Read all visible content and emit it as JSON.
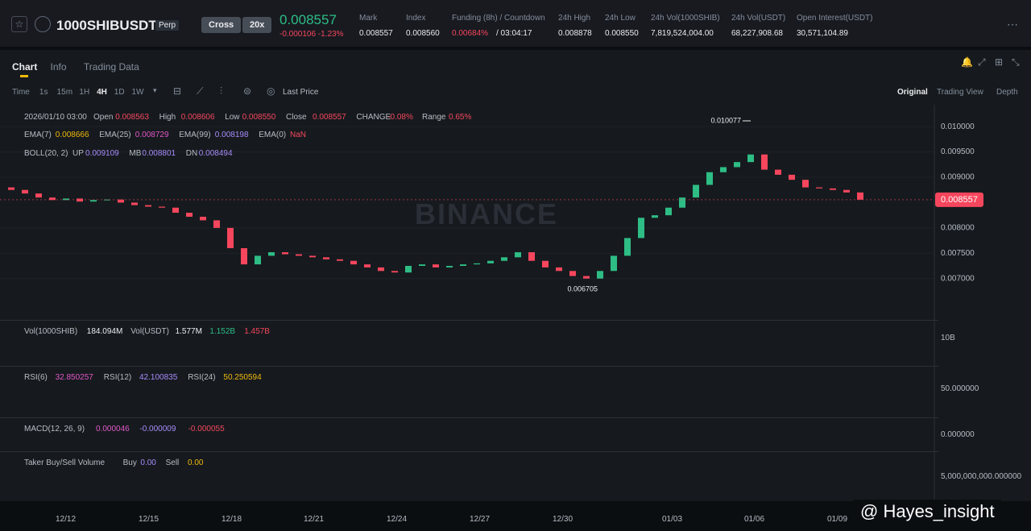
{
  "header": {
    "symbol": "1000SHIBUSDT",
    "contract": "Perp",
    "margin": "Cross",
    "leverage": "20x",
    "price": "0.008557",
    "change": "-0.000106",
    "change_pct": "-1.23%",
    "stats": [
      {
        "label": "Mark",
        "value": "0.008557"
      },
      {
        "label": "Index",
        "value": "0.008560"
      },
      {
        "label": "Funding (8h) / Countdown",
        "value": "0.00684%",
        "value2": "/ 03:04:17"
      },
      {
        "label": "24h High",
        "value": "0.008878"
      },
      {
        "label": "24h Low",
        "value": "0.008550"
      },
      {
        "label": "24h Vol(1000SHIB)",
        "value": "7,819,524,004.00"
      },
      {
        "label": "24h Vol(USDT)",
        "value": "68,227,908.68"
      },
      {
        "label": "Open Interest(USDT)",
        "value": "30,571,104.89"
      }
    ]
  },
  "tabs": [
    "Chart",
    "Info",
    "Trading Data"
  ],
  "intervals": [
    "Time",
    "1s",
    "15m",
    "1H",
    "4H",
    "1D",
    "1W"
  ],
  "price_type": "Last Price",
  "views": [
    "Original",
    "Trading View",
    "Depth"
  ],
  "legend": {
    "time": "2026/01/10 03:00",
    "ohlc": [
      {
        "label": "Open",
        "value": "0.008563"
      },
      {
        "label": "High",
        "value": "0.008606"
      },
      {
        "label": "Low",
        "value": "0.008550"
      },
      {
        "label": "Close",
        "value": "0.008557"
      },
      {
        "label": "CHANGE",
        "value": "-0.08%"
      },
      {
        "label": "Range",
        "value": "0.65%"
      }
    ],
    "ema": [
      {
        "label": "EMA(7)",
        "value": "0.008666",
        "color": "#f0b90b"
      },
      {
        "label": "EMA(25)",
        "value": "0.008729",
        "color": "#e056c7"
      },
      {
        "label": "EMA(99)",
        "value": "0.008198",
        "color": "#a78bfa"
      },
      {
        "label": "EMA(0)",
        "value": "NaN",
        "color": "#f6465d"
      }
    ],
    "boll": {
      "label": "BOLL(20, 2)",
      "items": [
        {
          "label": "UP",
          "value": "0.009109"
        },
        {
          "label": "MB",
          "value": "0.008801"
        },
        {
          "label": "DN",
          "value": "0.008494"
        }
      ]
    }
  },
  "watermark": "BINANCE",
  "chart": {
    "type": "candlestick",
    "open": 0.0088,
    "values": [
      0.00875,
      0.00868,
      0.0086,
      0.00855,
      0.00858,
      0.00852,
      0.00855,
      0.00856,
      0.0085,
      0.00845,
      0.00842,
      0.0084,
      0.0083,
      0.00822,
      0.00815,
      0.008,
      0.0076,
      0.00728,
      0.00745,
      0.00752,
      0.00748,
      0.00745,
      0.00742,
      0.00738,
      0.00735,
      0.00728,
      0.00722,
      0.00715,
      0.00712,
      0.00725,
      0.00728,
      0.00722,
      0.00725,
      0.00728,
      0.0073,
      0.00735,
      0.00742,
      0.00752,
      0.00735,
      0.00722,
      0.00715,
      0.00705,
      0.007,
      0.00715,
      0.00745,
      0.0078,
      0.0082,
      0.00825,
      0.0084,
      0.0086,
      0.00885,
      0.0091,
      0.0092,
      0.0093,
      0.00945,
      0.00915,
      0.00905,
      0.00895,
      0.0088,
      0.00878,
      0.00875,
      0.0087,
      0.008557
    ],
    "ylim": [
      0.0062,
      0.0104
    ],
    "yticks": [
      {
        "value": 0.01,
        "label": "0.010000"
      },
      {
        "value": 0.0095,
        "label": "0.009500"
      },
      {
        "value": 0.009,
        "label": "0.009000"
      },
      {
        "value": 0.008,
        "label": "0.008000"
      },
      {
        "value": 0.0075,
        "label": "0.007500"
      },
      {
        "value": 0.007,
        "label": "0.007000"
      }
    ],
    "last_price": {
      "value": 0.008557,
      "label": "0.008557"
    },
    "high_label": "0.010077",
    "low_label": "0.006705"
  },
  "dates": [
    "12/12",
    "12/15",
    "12/18",
    "12/21",
    "12/24",
    "12/27",
    "12/30",
    "01/03",
    "01/06",
    "01/09"
  ],
  "panels": [
    {
      "items": [
        {
          "label": "Vol(1000SHIB)",
          "value": "184.094M"
        },
        {
          "label": "Vol(USDT)",
          "value": "1.577M"
        },
        {
          "value": "1.152B",
          "color": "#2ebd85"
        },
        {
          "value": "1.457B",
          "color": "#f6465d"
        }
      ],
      "axis": "10B"
    },
    {
      "items": [
        {
          "label": "RSI(6)",
          "value": "32.850257",
          "color": "#e056c7"
        },
        {
          "label": "RSI(12)",
          "value": "42.100835",
          "color": "#a78bfa"
        },
        {
          "label": "RSI(24)",
          "value": "50.250594",
          "color": "#f0b90b"
        }
      ],
      "axis": "50.000000"
    },
    {
      "items": [
        {
          "label": "MACD(12, 26, 9)",
          "value": "0.000046",
          "color": "#e056c7"
        },
        {
          "value": "-0.000009",
          "color": "#a78bfa"
        },
        {
          "value": "-0.000055",
          "color": "#f6465d"
        }
      ],
      "axis": "0.000000"
    },
    {
      "items": [
        {
          "label": "Taker Buy/Sell Volume"
        },
        {
          "label": "Buy",
          "value": "0.00",
          "color": "#a78bfa"
        },
        {
          "label": "Sell",
          "value": "0.00",
          "color": "#f0b90b"
        }
      ],
      "axis": "5,000,000,000.000000"
    }
  ],
  "footer": "@ Hayes_insight"
}
